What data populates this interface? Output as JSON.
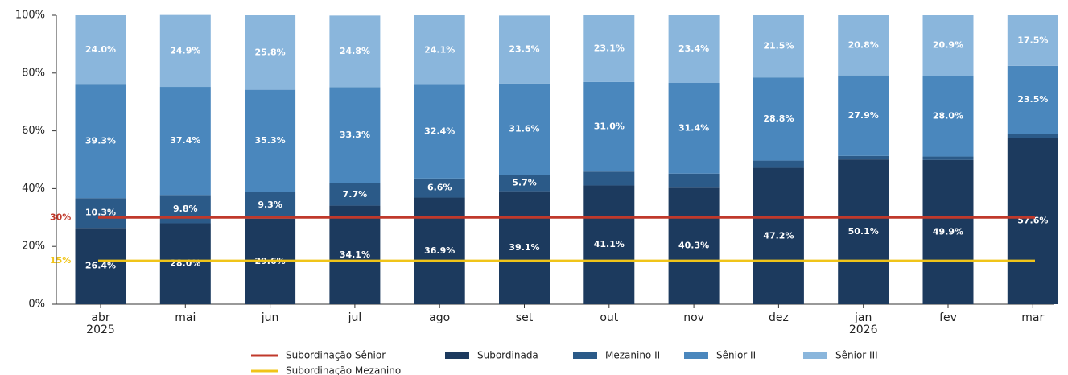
{
  "chart_data": {
    "type": "stacked_bar",
    "categories": [
      "abr\n2025",
      "mai",
      "jun",
      "jul",
      "ago",
      "set",
      "out",
      "nov",
      "dez",
      "jan\n2026",
      "fev",
      "mar"
    ],
    "series": [
      {
        "name": "Subordinada",
        "color": "#1c3a5e",
        "values": [
          26.4,
          28.0,
          29.6,
          34.1,
          36.9,
          39.1,
          41.1,
          40.3,
          47.2,
          50.1,
          49.9,
          57.6
        ],
        "value_labels": [
          "26.4%",
          "28.0%",
          "29.6%",
          "34.1%",
          "36.9%",
          "39.1%",
          "41.1%",
          "40.3%",
          "47.2%",
          "50.1%",
          "49.9%",
          "57.6%"
        ]
      },
      {
        "name": "Mezanino II",
        "color": "#2b5a88",
        "values": [
          10.3,
          9.8,
          9.3,
          7.7,
          6.6,
          5.7,
          4.8,
          4.9,
          2.5,
          1.2,
          1.2,
          1.4
        ],
        "value_labels": [
          "10.3%",
          "9.8%",
          "9.3%",
          "7.7%",
          "6.6%",
          "5.7%",
          null,
          null,
          null,
          null,
          null,
          null
        ]
      },
      {
        "name": "Sênior II",
        "color": "#4a87bd",
        "values": [
          39.3,
          37.4,
          35.3,
          33.3,
          32.4,
          31.6,
          31.0,
          31.4,
          28.8,
          27.9,
          28.0,
          23.5
        ],
        "value_labels": [
          "39.3%",
          "37.4%",
          "35.3%",
          "33.3%",
          "32.4%",
          "31.6%",
          "31.0%",
          "31.4%",
          "28.8%",
          "27.9%",
          "28.0%",
          "23.5%"
        ]
      },
      {
        "name": "Sênior III",
        "color": "#8ab6dc",
        "values": [
          24.0,
          24.9,
          25.8,
          24.8,
          24.1,
          23.5,
          23.1,
          23.4,
          21.5,
          20.8,
          20.9,
          17.5
        ],
        "value_labels": [
          "24.0%",
          "24.9%",
          "25.8%",
          "24.8%",
          "24.1%",
          "23.5%",
          "23.1%",
          "23.4%",
          "21.5%",
          "20.8%",
          "20.9%",
          "17.5%"
        ]
      }
    ],
    "reference_lines": [
      {
        "name": "Subordinação Sênior",
        "value": 30,
        "label": "30%",
        "color": "#c0392b"
      },
      {
        "name": "Subordinação Mezanino",
        "value": 15,
        "label": "15%",
        "color": "#f0c419"
      }
    ],
    "ylim": [
      0,
      100
    ],
    "yticks": [
      {
        "value": 0,
        "label": "0%"
      },
      {
        "value": 20,
        "label": "20%"
      },
      {
        "value": 40,
        "label": "40%"
      },
      {
        "value": 60,
        "label": "60%"
      },
      {
        "value": 80,
        "label": "80%"
      },
      {
        "value": 100,
        "label": "100%"
      }
    ]
  }
}
